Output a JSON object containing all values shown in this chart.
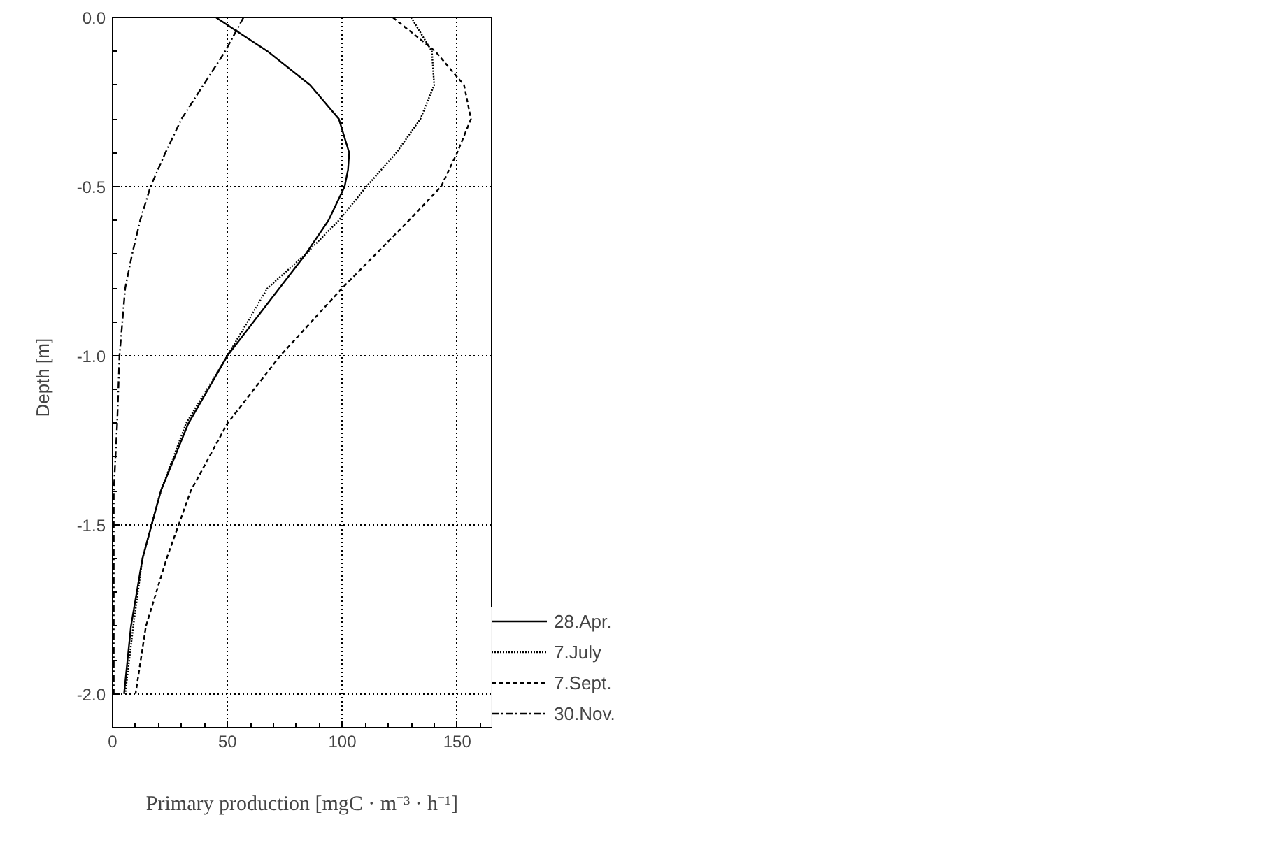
{
  "chart_data": {
    "type": "line",
    "xlabel": "Primary production [mgC · m⁻³ · h⁻¹]",
    "ylabel": "Depth   [m]",
    "xlim": [
      0,
      165
    ],
    "xticks": [
      0,
      50,
      100,
      150
    ],
    "ylim": [
      -2.1,
      0
    ],
    "yticks": [
      {
        "value": 0,
        "label": "0.0"
      },
      {
        "value": -0.5,
        "label": "-0.5"
      },
      {
        "value": -1.0,
        "label": "-1.0"
      },
      {
        "value": -1.5,
        "label": "-1.5"
      },
      {
        "value": -2.0,
        "label": "-2.0"
      }
    ],
    "grid": true,
    "legend": "bottom right",
    "series": [
      {
        "name": "28.Apr.",
        "color": "#000000",
        "line_style": "solid",
        "x": [
          45,
          67.5,
          86,
          98.5,
          103,
          102.5,
          101,
          94,
          84,
          50,
          33,
          21,
          13,
          8,
          5
        ],
        "values": [
          0,
          -0.1,
          -0.2,
          -0.3,
          -0.4,
          -0.45,
          -0.5,
          -0.6,
          -0.7,
          -1.0,
          -1.2,
          -1.4,
          -1.6,
          -1.8,
          -2.0
        ]
      },
      {
        "name": "7.July",
        "color": "#000000",
        "line_style": "dotted",
        "x": [
          130,
          139,
          140,
          134,
          123.5,
          110.5,
          98.5,
          84,
          67.5,
          50,
          32,
          21,
          13,
          9,
          5.5
        ],
        "values": [
          0,
          -0.1,
          -0.2,
          -0.3,
          -0.4,
          -0.5,
          -0.6,
          -0.7,
          -0.8,
          -1.0,
          -1.2,
          -1.4,
          -1.6,
          -1.8,
          -2.0
        ]
      },
      {
        "name": "7.Sept.",
        "color": "#000000",
        "line_style": "dashed",
        "x": [
          122,
          140.5,
          153,
          156,
          150,
          143,
          129,
          100,
          73,
          50,
          34,
          23.5,
          14.5,
          10
        ],
        "values": [
          0,
          -0.1,
          -0.2,
          -0.3,
          -0.4,
          -0.5,
          -0.6,
          -0.8,
          -1.0,
          -1.2,
          -1.4,
          -1.6,
          -1.8,
          -2.0
        ]
      },
      {
        "name": "30.Nov.",
        "color": "#000000",
        "line_style": "dashdot",
        "x": [
          57,
          49,
          39.5,
          30,
          23,
          16.5,
          12,
          8.5,
          5.5,
          3,
          2,
          0.5,
          0.5,
          0.5,
          0.5
        ],
        "values": [
          0,
          -0.1,
          -0.2,
          -0.3,
          -0.4,
          -0.5,
          -0.6,
          -0.7,
          -0.8,
          -1.0,
          -1.2,
          -1.4,
          -1.6,
          -1.8,
          -2.0
        ]
      }
    ]
  }
}
